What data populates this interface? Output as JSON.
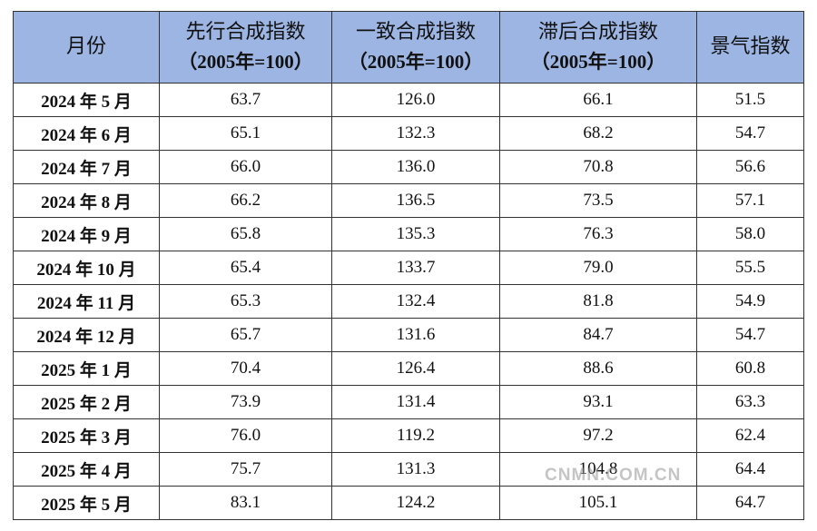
{
  "table": {
    "headers": [
      {
        "title": "月份"
      },
      {
        "title": "先行合成指数",
        "sub": "（2005年=100）"
      },
      {
        "title": "一致合成指数",
        "sub": "（2005年=100）"
      },
      {
        "title": "滞后合成指数",
        "sub": "（2005年=100）"
      },
      {
        "title": "景气指数"
      }
    ],
    "rows": [
      [
        "2024 年 5 月",
        "63.7",
        "126.0",
        "66.1",
        "51.5"
      ],
      [
        "2024 年 6 月",
        "65.1",
        "132.3",
        "68.2",
        "54.7"
      ],
      [
        "2024 年 7 月",
        "66.0",
        "136.0",
        "70.8",
        "56.6"
      ],
      [
        "2024 年 8 月",
        "66.2",
        "136.5",
        "73.5",
        "57.1"
      ],
      [
        "2024 年 9 月",
        "65.8",
        "135.3",
        "76.3",
        "58.0"
      ],
      [
        "2024 年 10 月",
        "65.4",
        "133.7",
        "79.0",
        "55.5"
      ],
      [
        "2024 年 11 月",
        "65.3",
        "132.4",
        "81.8",
        "54.9"
      ],
      [
        "2024 年 12 月",
        "65.7",
        "131.6",
        "84.7",
        "54.7"
      ],
      [
        "2025 年 1 月",
        "70.4",
        "126.4",
        "88.6",
        "60.8"
      ],
      [
        "2025 年 2 月",
        "73.9",
        "131.4",
        "93.1",
        "63.3"
      ],
      [
        "2025 年 3 月",
        "76.0",
        "119.2",
        "97.2",
        "62.4"
      ],
      [
        "2025 年 4 月",
        "75.7",
        "131.3",
        "104.8",
        "64.4"
      ],
      [
        "2025 年 5 月",
        "83.1",
        "124.2",
        "105.1",
        "64.7"
      ]
    ]
  },
  "watermark": "CNMN.COM.CN"
}
